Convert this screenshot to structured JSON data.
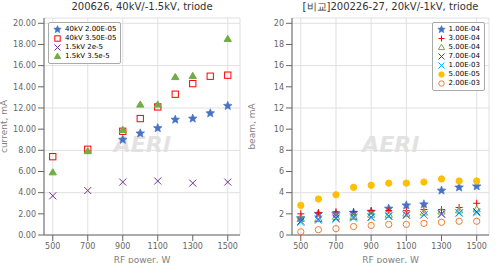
{
  "chart_data": [
    {
      "type": "scatter",
      "title": "200626, 40kV/-1.5kV, triode",
      "xlabel": "RF power, W",
      "ylabel": "current, mA",
      "xlim": [
        450,
        1570
      ],
      "ylim": [
        0,
        20.5
      ],
      "xticks": [
        500,
        700,
        900,
        1100,
        1300,
        1500
      ],
      "yticks": [
        {
          "value": 0,
          "label": "0.00"
        },
        {
          "value": 2,
          "label": "2.00"
        },
        {
          "value": 4,
          "label": "4.00"
        },
        {
          "value": 6,
          "label": "6.00"
        },
        {
          "value": 8,
          "label": "8.00"
        },
        {
          "value": 10,
          "label": "10.00"
        },
        {
          "value": 12,
          "label": "12.00"
        },
        {
          "value": 14,
          "label": "14.00"
        },
        {
          "value": 16,
          "label": "16.00"
        },
        {
          "value": 18,
          "label": "18.00"
        },
        {
          "value": 20,
          "label": "20.00"
        }
      ],
      "grid": true,
      "legend": "upper left",
      "annotations": [
        "AERl"
      ],
      "series": [
        {
          "name": "40kV 2.00E-05",
          "color": "#4472C4",
          "marker": "star",
          "x": [
            900,
            1000,
            1100,
            1200,
            1300,
            1400,
            1500
          ],
          "values": [
            9.0,
            9.6,
            10.1,
            10.9,
            11.0,
            11.5,
            12.2
          ]
        },
        {
          "name": "40kV 3.50E-05",
          "color": "#FF0000",
          "marker": "square_open",
          "x": [
            500,
            700,
            900,
            1000,
            1100,
            1200,
            1300,
            1400,
            1500
          ],
          "values": [
            7.4,
            8.1,
            9.8,
            11.0,
            12.1,
            13.3,
            14.3,
            15.0,
            15.1
          ]
        },
        {
          "name": "1.5kV 2e-5",
          "color": "#7030A0",
          "marker": "x",
          "x": [
            500,
            700,
            900,
            1100,
            1300,
            1500
          ],
          "values": [
            3.7,
            4.2,
            5.0,
            5.1,
            4.9,
            5.0
          ]
        },
        {
          "name": "1.5kV 3.5e-5",
          "color": "#70AD47",
          "marker": "triangle",
          "x": [
            500,
            700,
            900,
            1000,
            1100,
            1200,
            1300,
            1500
          ],
          "values": [
            5.9,
            7.9,
            9.9,
            12.3,
            12.3,
            14.9,
            15.0,
            18.5
          ]
        }
      ]
    },
    {
      "type": "scatter",
      "title": "[비교]200226-27, 20kV/-1kV, triode",
      "xlabel": "RF power, W",
      "ylabel": "beam, mA",
      "xlim": [
        450,
        1570
      ],
      "ylim": [
        0,
        20.5
      ],
      "xticks": [
        500,
        700,
        900,
        1100,
        1300,
        1500
      ],
      "yticks": [
        0,
        2,
        4,
        6,
        8,
        10,
        12,
        14,
        16,
        18,
        20
      ],
      "grid": true,
      "legend": "upper right",
      "annotations": [
        "AERl"
      ],
      "series": [
        {
          "name": "1.00E-04",
          "color": "#4472C4",
          "marker": "star",
          "x": [
            500,
            600,
            700,
            800,
            900,
            1000,
            1100,
            1200,
            1300,
            1400,
            1500
          ],
          "values": [
            1.6,
            2.0,
            2.0,
            2.1,
            2.2,
            2.5,
            2.8,
            2.9,
            4.2,
            4.5,
            4.6
          ]
        },
        {
          "name": "3.00E-04",
          "color": "#FF0000",
          "marker": "plus",
          "x": [
            500,
            600,
            700,
            800,
            900,
            1000,
            1100,
            1200,
            1300,
            1400,
            1500
          ],
          "values": [
            2.0,
            2.1,
            2.2,
            2.2,
            2.3,
            2.3,
            2.3,
            2.4,
            2.4,
            2.6,
            3.0
          ]
        },
        {
          "name": "5.00E-04",
          "color": "#70AD47",
          "marker": "triangle_open",
          "x": [
            500,
            600,
            700,
            800,
            900,
            1000,
            1100,
            1200,
            1300,
            1400,
            1500
          ],
          "values": [
            1.5,
            1.5,
            1.7,
            1.7,
            1.9,
            1.9,
            2.0,
            2.1,
            2.2,
            2.3,
            2.4
          ]
        },
        {
          "name": "7.00E-04",
          "color": "#7030A0",
          "marker": "x",
          "x": [
            500,
            600,
            700,
            800,
            900,
            1000,
            1100,
            1200,
            1300,
            1400,
            1500
          ],
          "values": [
            1.3,
            1.5,
            1.6,
            1.7,
            1.7,
            1.8,
            1.9,
            1.9,
            2.0,
            2.1,
            2.2
          ]
        },
        {
          "name": "1.00E-03",
          "color": "#00B0F0",
          "marker": "x",
          "x": [
            500,
            600,
            700,
            800,
            900,
            1000,
            1100,
            1200,
            1300,
            1400,
            1500
          ],
          "values": [
            1.2,
            1.4,
            1.5,
            1.6,
            1.65,
            1.75,
            1.85,
            1.9,
            1.95,
            2.05,
            2.1
          ]
        },
        {
          "name": "5.00E-05",
          "color": "#FFC000",
          "marker": "circle",
          "x": [
            500,
            600,
            700,
            800,
            900,
            1000,
            1100,
            1200,
            1300,
            1400,
            1500
          ],
          "values": [
            2.8,
            3.4,
            3.8,
            4.5,
            4.7,
            4.9,
            4.9,
            5.0,
            5.3,
            5.1,
            5.1
          ]
        },
        {
          "name": "2.00E-03",
          "color": "#ED7D31",
          "marker": "circle_open",
          "x": [
            500,
            600,
            700,
            800,
            900,
            1000,
            1100,
            1200,
            1300,
            1400,
            1500
          ],
          "values": [
            0.3,
            0.5,
            0.6,
            0.8,
            0.9,
            1.0,
            1.0,
            1.1,
            1.2,
            1.3,
            1.3
          ]
        }
      ]
    }
  ]
}
